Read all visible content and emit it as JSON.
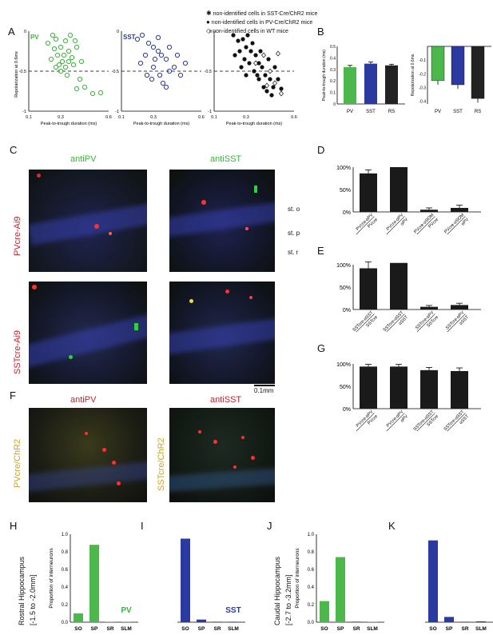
{
  "legend_top": [
    "non-identified cells in SST-Cre/ChR2 mice",
    "non-identified cells in PV-Cre/ChR2 mice",
    "non-identified cells in WT mice"
  ],
  "panel_letters": [
    "A",
    "B",
    "C",
    "D",
    "E",
    "F",
    "G",
    "H",
    "I",
    "J",
    "K"
  ],
  "panelA": {
    "ylabel": "Repolarization at 0.6ms",
    "xlabel": "Peak-to-trough duration (ms)",
    "xticks": [
      "0.1",
      "0.3",
      "0.6"
    ],
    "yticks": [
      "0",
      "-0.5",
      "-1"
    ],
    "tags": [
      "PV",
      "SST"
    ]
  },
  "panelB": {
    "left_ylabel": "Peak-to-trough duration (ms)",
    "right_ylabel": "Repolarization at 0.6ms",
    "left_yticks": [
      "0.5",
      "0.4",
      "0.3",
      "0.2",
      "0.1",
      "0"
    ],
    "right_yticks": [
      "-0.1",
      "-0.2",
      "-0.3",
      "-0.4"
    ],
    "categories": [
      "PV",
      "SST",
      "RS"
    ]
  },
  "panelC": {
    "col1": "antiPV",
    "col2": "antiSST",
    "row1": "PVcre-Ai9",
    "row2": "SSTcre-Ai9",
    "layers": [
      "st. o",
      "st. p",
      "st. r"
    ],
    "scalebar": "0.1mm"
  },
  "panelF": {
    "col1": "antiPV",
    "col2": "antiSST",
    "row1": "PVcre/ChR2",
    "row2": "SSTcre/ChR2"
  },
  "bar_yticks": [
    "100%",
    "50%",
    "0%"
  ],
  "panelD_labels": [
    [
      "PVcre-αPV",
      "PVcre"
    ],
    [
      "PVcre-αPV",
      "αPV"
    ],
    [
      "PVcre-αSOM",
      "PVcre"
    ],
    [
      "PVcre-αSOM",
      "αPV"
    ]
  ],
  "panelE_labels": [
    [
      "SSTcre-αSST",
      "SSTcre"
    ],
    [
      "SSTcre-αSST",
      "αSST"
    ],
    [
      "SSTcre-αPV",
      "SSTcre"
    ],
    [
      "SSTcre-αPV",
      "αSST"
    ]
  ],
  "panelG_labels": [
    [
      "PVcre-αPV",
      "PVcre"
    ],
    [
      "PVcre-αPV",
      "αPV"
    ],
    [
      "SSTcre-αSST",
      "SSTcre"
    ],
    [
      "SSTcre-αSST",
      "αSST"
    ]
  ],
  "panelHK": {
    "rostral_label": "Rostral Hippocampus",
    "rostral_range": "[-1.5 to -2.0mm]",
    "caudal_label": "Caudal Hippocampus",
    "caudal_range": "[-2.7 to -3.2mm]",
    "ylabel": "Proportion of interneurons",
    "yticks": [
      "1.0",
      "0.8",
      "0.6",
      "0.4",
      "0.2",
      "0.0"
    ],
    "categories": [
      "SO",
      "SP",
      "SR",
      "SLM"
    ],
    "tag_pv": "PV",
    "tag_sst": "SST"
  },
  "chart_data": [
    {
      "type": "bar",
      "id": "B-left",
      "categories": [
        "PV",
        "SST",
        "RS"
      ],
      "values": [
        0.32,
        0.35,
        0.335
      ],
      "errors": [
        0.015,
        0.015,
        0.01
      ],
      "ylim": [
        0,
        0.5
      ],
      "colors": [
        "#4cb84c",
        "#2b3aa0",
        "#222222"
      ]
    },
    {
      "type": "bar",
      "id": "B-right",
      "categories": [
        "PV",
        "SST",
        "RS"
      ],
      "values": [
        -0.25,
        -0.28,
        -0.38
      ],
      "errors": [
        0.03,
        0.03,
        0.03
      ],
      "ylim": [
        -0.42,
        0
      ],
      "colors": [
        "#4cb84c",
        "#2b3aa0",
        "#222222"
      ]
    },
    {
      "type": "bar",
      "id": "D",
      "values": [
        86,
        100,
        5,
        9
      ],
      "errors": [
        8,
        0,
        4,
        6
      ],
      "ylim": [
        0,
        100
      ]
    },
    {
      "type": "bar",
      "id": "E",
      "values": [
        92,
        104,
        6,
        10
      ],
      "errors": [
        14,
        0,
        3,
        4
      ],
      "ylim": [
        0,
        100
      ]
    },
    {
      "type": "bar",
      "id": "G",
      "values": [
        94,
        94,
        86,
        84
      ],
      "errors": [
        5,
        5,
        6,
        7
      ],
      "ylim": [
        0,
        100
      ]
    },
    {
      "type": "bar",
      "id": "H",
      "categories": [
        "SO",
        "SP",
        "SR",
        "SLM"
      ],
      "values": [
        0.1,
        0.88,
        0.0,
        0.0
      ],
      "ylim": [
        0,
        1.0
      ],
      "color": "#4cb84c"
    },
    {
      "type": "bar",
      "id": "I",
      "categories": [
        "SO",
        "SP",
        "SR",
        "SLM"
      ],
      "values": [
        0.95,
        0.03,
        0.0,
        0.0
      ],
      "ylim": [
        0,
        1.0
      ],
      "color": "#2b3aa0"
    },
    {
      "type": "bar",
      "id": "J",
      "categories": [
        "SO",
        "SP",
        "SR",
        "SLM"
      ],
      "values": [
        0.24,
        0.74,
        0.01,
        0.0
      ],
      "ylim": [
        0,
        1.0
      ],
      "color": "#4cb84c"
    },
    {
      "type": "bar",
      "id": "K",
      "categories": [
        "SO",
        "SP",
        "SR",
        "SLM"
      ],
      "values": [
        0.93,
        0.06,
        0.0,
        0.01
      ],
      "ylim": [
        0,
        1.0
      ],
      "color": "#2b3aa0"
    }
  ],
  "scatter": {
    "pv": [
      [
        0.22,
        -0.15
      ],
      [
        0.25,
        -0.05
      ],
      [
        0.27,
        -0.1
      ],
      [
        0.3,
        -0.2
      ],
      [
        0.33,
        -0.12
      ],
      [
        0.35,
        -0.25
      ],
      [
        0.28,
        -0.3
      ],
      [
        0.31,
        -0.38
      ],
      [
        0.26,
        -0.22
      ],
      [
        0.37,
        -0.33
      ],
      [
        0.33,
        -0.45
      ],
      [
        0.3,
        -0.5
      ],
      [
        0.34,
        -0.55
      ],
      [
        0.4,
        -0.2
      ],
      [
        0.36,
        -0.05
      ],
      [
        0.29,
        -0.42
      ],
      [
        0.38,
        -0.42
      ],
      [
        0.42,
        -0.6
      ],
      [
        0.45,
        -0.7
      ],
      [
        0.5,
        -0.78
      ],
      [
        0.55,
        -0.77
      ],
      [
        0.4,
        -0.72
      ],
      [
        0.32,
        -0.3
      ],
      [
        0.24,
        -0.35
      ],
      [
        0.35,
        -0.38
      ],
      [
        0.27,
        -0.45
      ],
      [
        0.43,
        -0.38
      ],
      [
        0.39,
        -0.12
      ]
    ],
    "sst": [
      [
        0.2,
        -0.1
      ],
      [
        0.23,
        -0.05
      ],
      [
        0.27,
        -0.15
      ],
      [
        0.3,
        -0.2
      ],
      [
        0.33,
        -0.08
      ],
      [
        0.35,
        -0.3
      ],
      [
        0.38,
        -0.35
      ],
      [
        0.25,
        -0.3
      ],
      [
        0.3,
        -0.45
      ],
      [
        0.34,
        -0.55
      ],
      [
        0.4,
        -0.5
      ],
      [
        0.43,
        -0.45
      ],
      [
        0.45,
        -0.3
      ],
      [
        0.29,
        -0.6
      ],
      [
        0.36,
        -0.65
      ],
      [
        0.4,
        -0.2
      ],
      [
        0.22,
        -0.4
      ],
      [
        0.31,
        -0.35
      ],
      [
        0.47,
        -0.55
      ],
      [
        0.26,
        -0.55
      ],
      [
        0.38,
        -0.7
      ],
      [
        0.5,
        -0.4
      ],
      [
        0.33,
        -0.25
      ]
    ],
    "all_filled": [
      [
        0.22,
        -0.05
      ],
      [
        0.25,
        -0.12
      ],
      [
        0.28,
        -0.1
      ],
      [
        0.3,
        -0.2
      ],
      [
        0.33,
        -0.25
      ],
      [
        0.36,
        -0.3
      ],
      [
        0.38,
        -0.4
      ],
      [
        0.4,
        -0.45
      ],
      [
        0.42,
        -0.55
      ],
      [
        0.45,
        -0.6
      ],
      [
        0.47,
        -0.7
      ],
      [
        0.35,
        -0.5
      ],
      [
        0.32,
        -0.4
      ],
      [
        0.29,
        -0.35
      ],
      [
        0.26,
        -0.25
      ],
      [
        0.38,
        -0.6
      ],
      [
        0.41,
        -0.7
      ],
      [
        0.43,
        -0.75
      ],
      [
        0.5,
        -0.6
      ],
      [
        0.48,
        -0.45
      ],
      [
        0.34,
        -0.15
      ],
      [
        0.31,
        -0.05
      ],
      [
        0.44,
        -0.35
      ],
      [
        0.37,
        -0.55
      ],
      [
        0.3,
        -0.55
      ],
      [
        0.27,
        -0.45
      ],
      [
        0.46,
        -0.8
      ],
      [
        0.39,
        -0.25
      ],
      [
        0.23,
        -0.3
      ],
      [
        0.52,
        -0.72
      ]
    ],
    "wt": [
      [
        0.41,
        -0.3
      ],
      [
        0.45,
        -0.5
      ],
      [
        0.5,
        -0.28
      ],
      [
        0.48,
        -0.65
      ],
      [
        0.52,
        -0.78
      ],
      [
        0.36,
        -0.4
      ],
      [
        0.43,
        -0.68
      ]
    ]
  }
}
